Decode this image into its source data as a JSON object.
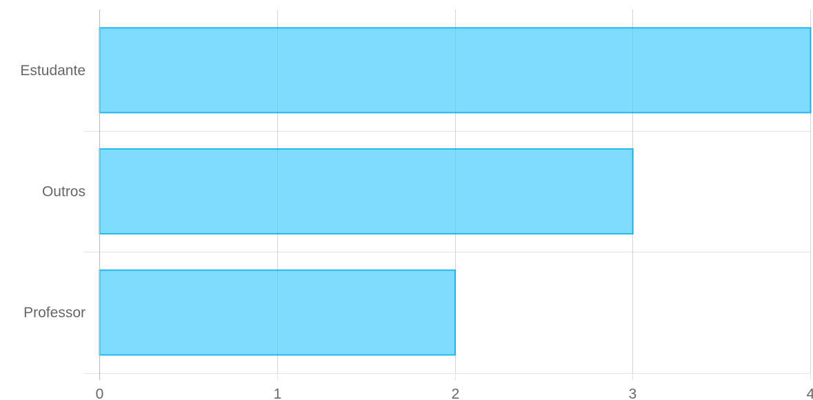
{
  "chart_data": {
    "type": "bar",
    "orientation": "horizontal",
    "categories": [
      "Estudante",
      "Outros",
      "Professor"
    ],
    "values": [
      4,
      3,
      2
    ],
    "title": "",
    "xlabel": "",
    "ylabel": "",
    "xlim": [
      0,
      4
    ],
    "xticks": [
      "0",
      "1",
      "2",
      "3",
      "4"
    ],
    "grid": true,
    "legend": "none",
    "colors": {
      "bar_fill": "#7fdcfe",
      "bar_border": "#22b8f0",
      "grid": "#e3e3e3",
      "axis": "#b8b8b8",
      "label": "#666666"
    }
  }
}
